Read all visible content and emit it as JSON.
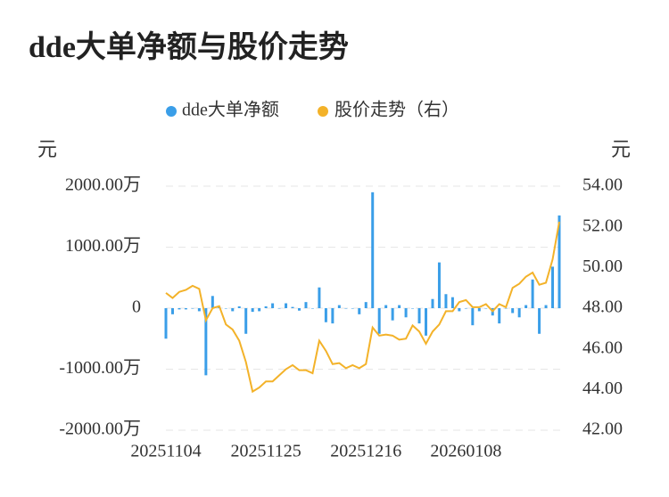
{
  "chart_data": {
    "type": "bar-line",
    "title": "dde大单净额与股价走势",
    "y_label": "元",
    "y2_label": "元",
    "categories": [
      "20251104",
      null,
      null,
      null,
      null,
      null,
      null,
      null,
      null,
      null,
      null,
      null,
      null,
      null,
      null,
      "20251125",
      null,
      null,
      null,
      null,
      null,
      null,
      null,
      null,
      null,
      null,
      null,
      null,
      null,
      null,
      "20251216",
      null,
      null,
      null,
      null,
      null,
      null,
      null,
      null,
      null,
      null,
      null,
      null,
      null,
      null,
      "20260108",
      null,
      null,
      null,
      null,
      null,
      null,
      null,
      null,
      null,
      null,
      null,
      null,
      null,
      null
    ],
    "series": [
      {
        "name": "dde大单净额",
        "type": "bar",
        "color": "#3a9ee8",
        "values": [
          -500,
          -100,
          -20,
          -20,
          0,
          -50,
          -1100,
          200,
          20,
          0,
          -50,
          30,
          -420,
          -60,
          -50,
          30,
          80,
          0,
          80,
          20,
          -40,
          100,
          0,
          340,
          -230,
          -250,
          50,
          0,
          0,
          -100,
          100,
          1900,
          -420,
          50,
          -200,
          50,
          -150,
          0,
          -250,
          -450,
          150,
          750,
          230,
          180,
          -50,
          0,
          -280,
          -50,
          0,
          -120,
          -250,
          0,
          -80,
          -150,
          50,
          470,
          -420,
          50,
          680,
          1520
        ]
      },
      {
        "name": "股价走势（右）",
        "type": "line",
        "axis": "y2",
        "color": "#f3b229",
        "values": [
          48.75,
          48.5,
          48.8,
          48.9,
          49.1,
          48.95,
          47.4,
          48.0,
          48.1,
          47.2,
          46.95,
          46.4,
          45.35,
          43.9,
          44.1,
          44.4,
          44.4,
          44.7,
          45.0,
          45.2,
          44.95,
          44.95,
          44.8,
          46.4,
          45.9,
          45.25,
          45.3,
          45.05,
          45.2,
          45.05,
          45.25,
          47.05,
          46.65,
          46.7,
          46.65,
          46.45,
          46.5,
          47.15,
          46.85,
          46.25,
          46.85,
          47.2,
          47.85,
          47.85,
          48.3,
          48.4,
          48.05,
          48.05,
          48.2,
          47.85,
          48.2,
          48.05,
          49.0,
          49.2,
          49.55,
          49.75,
          49.15,
          49.25,
          50.4,
          52.25
        ]
      }
    ],
    "ylim": [
      -2000,
      2000
    ],
    "yticks": [
      {
        "value": -2000,
        "label": "-2000.00万"
      },
      {
        "value": -1000,
        "label": "-1000.00万"
      },
      0,
      {
        "value": 1000,
        "label": "1000.00万"
      },
      {
        "value": 2000,
        "label": "2000.00万"
      }
    ],
    "y2lim": [
      42,
      54
    ],
    "y2ticks": [
      {
        "value": 42,
        "label": "42.00"
      },
      {
        "value": 44,
        "label": "44.00"
      },
      {
        "value": 46,
        "label": "46.00"
      },
      {
        "value": 48,
        "label": "48.00"
      },
      {
        "value": 50,
        "label": "50.00"
      },
      {
        "value": 52,
        "label": "52.00"
      },
      {
        "value": 54,
        "label": "54.00"
      }
    ],
    "grid": true
  }
}
